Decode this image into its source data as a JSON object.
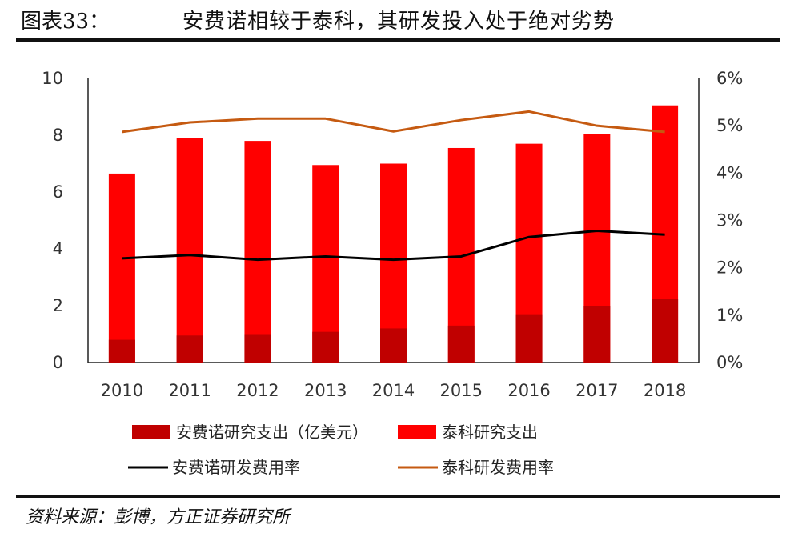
{
  "header": {
    "figure_number": "图表33：",
    "title": "安费诺相较于泰科，其研发投入处于绝对劣势"
  },
  "footer": {
    "source": "资料来源：彭博，方正证券研究所"
  },
  "colors": {
    "amphenol_bar": "#C00000",
    "te_bar": "#FF0000",
    "amphenol_line": "#000000",
    "te_line": "#C55A11"
  },
  "chart_data": {
    "type": "bar",
    "categories": [
      "2010",
      "2011",
      "2012",
      "2013",
      "2014",
      "2015",
      "2016",
      "2017",
      "2018"
    ],
    "series": [
      {
        "name": "安费诺研究支出（亿美元）",
        "kind": "bar",
        "axis": "left",
        "values": [
          0.8,
          0.95,
          1.0,
          1.08,
          1.2,
          1.3,
          1.7,
          2.0,
          2.25
        ]
      },
      {
        "name": "泰科研究支出",
        "kind": "bar",
        "axis": "left",
        "values": [
          6.65,
          7.9,
          7.8,
          6.95,
          7.0,
          7.55,
          7.7,
          8.05,
          9.05
        ]
      },
      {
        "name": "安费诺研发费用率",
        "kind": "line",
        "axis": "right",
        "values": [
          2.2,
          2.27,
          2.17,
          2.24,
          2.17,
          2.24,
          2.65,
          2.78,
          2.7
        ]
      },
      {
        "name": "泰科研发费用率",
        "kind": "line",
        "axis": "right",
        "values": [
          4.87,
          5.07,
          5.15,
          5.15,
          4.88,
          5.12,
          5.3,
          5.0,
          4.87
        ]
      }
    ],
    "y_left": {
      "min": 0,
      "max": 10,
      "ticks": [
        "0",
        "2",
        "4",
        "6",
        "8",
        "10"
      ]
    },
    "y_right": {
      "min": 0,
      "max": 6,
      "unit": "%",
      "ticks": [
        "0%",
        "1%",
        "2%",
        "3%",
        "4%",
        "5%",
        "6%"
      ]
    },
    "grid": false,
    "legend_position": "bottom"
  }
}
